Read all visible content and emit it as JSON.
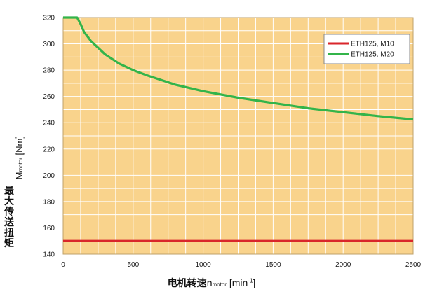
{
  "chart_data": {
    "type": "line",
    "xlabel": {
      "prefix": "电机转速",
      "var": "n",
      "sub": "motor",
      "unit_open": " [min",
      "unit_sup": "-1",
      "unit_close": "]"
    },
    "ylabel": {
      "line1": "最大传送扭矩",
      "var": "M",
      "sub": "motor",
      "unit": " [Nm]"
    },
    "xlim": [
      0,
      2500
    ],
    "ylim": [
      140,
      320
    ],
    "x_ticks": [
      0,
      500,
      1000,
      1500,
      2000,
      2500
    ],
    "y_ticks": [
      140,
      160,
      180,
      200,
      220,
      240,
      260,
      280,
      300,
      320
    ],
    "x_gridlines": [
      0,
      125,
      250,
      375,
      500,
      625,
      750,
      875,
      1000,
      1125,
      1250,
      1375,
      1500,
      1625,
      1750,
      1875,
      2000,
      2125,
      2250,
      2375,
      2500
    ],
    "y_gridlines": [
      140,
      150,
      160,
      170,
      180,
      190,
      200,
      210,
      220,
      230,
      240,
      250,
      260,
      270,
      280,
      290,
      300,
      310,
      320
    ],
    "grid": true,
    "legend_position": "top-right",
    "background": "#f9d38c",
    "series": [
      {
        "name": "ETH125, M10",
        "color": "#d9262b",
        "x": [
          0,
          2500
        ],
        "y": [
          150,
          150
        ]
      },
      {
        "name": "ETH125, M20",
        "color": "#33b44a",
        "x": [
          0,
          100,
          125,
          150,
          200,
          250,
          300,
          400,
          500,
          600,
          800,
          1000,
          1250,
          1500,
          1750,
          2000,
          2250,
          2500
        ],
        "y": [
          320,
          320,
          315,
          309,
          302,
          297,
          292,
          285,
          280,
          276,
          269,
          264,
          259,
          255,
          251,
          248,
          245,
          242.5
        ]
      }
    ]
  }
}
